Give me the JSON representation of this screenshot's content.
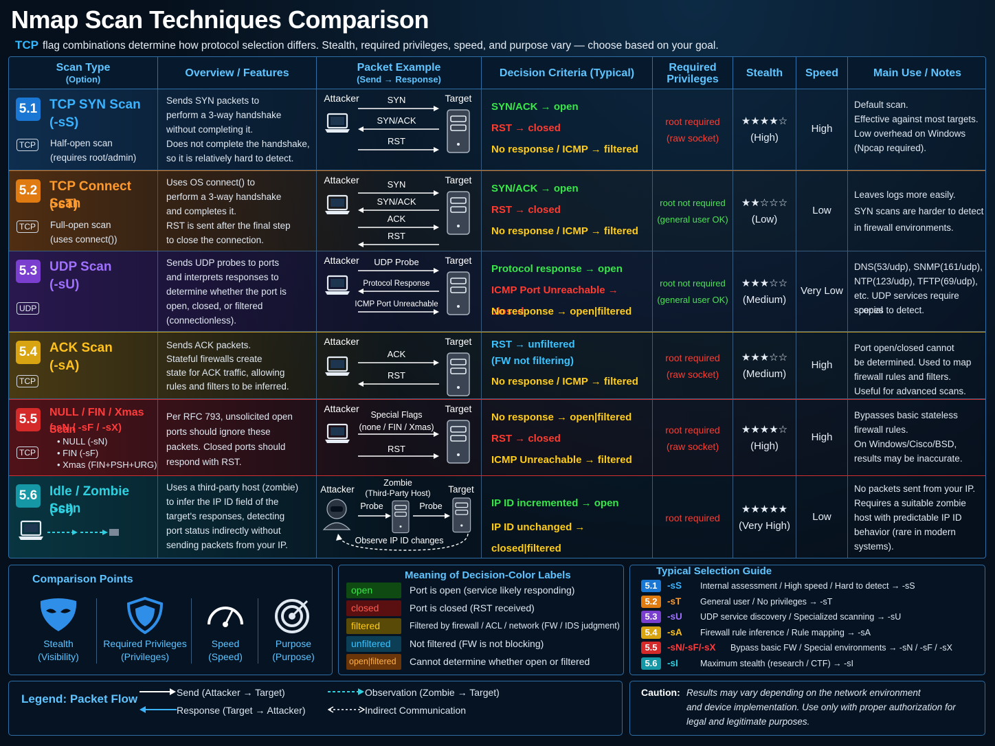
{
  "title": "Nmap Scan Techniques Comparison",
  "subtitle": {
    "tcp": "TCP",
    "text": "flag combinations determine how protocol selection differs. Stealth, required privileges, speed, and purpose vary — choose based on your goal."
  },
  "headers": {
    "scan_type": "Scan Type",
    "scan_type_sub": "(Option)",
    "overview": "Overview / Features",
    "packet": "Packet Example",
    "packet_sub": "(Send → Response)",
    "criteria": "Decision Criteria (Typical)",
    "priv": "Required",
    "priv_sub": "Privileges",
    "stealth": "Stealth",
    "speed": "Speed",
    "notes": "Main Use / Notes"
  },
  "common": {
    "attacker": "Attacker",
    "target": "Target"
  },
  "rows": [
    {
      "num": "5.1",
      "color": "#1a78d4",
      "name_color": "#3bb3ff",
      "name1": "TCP SYN Scan",
      "name2": "(-sS)",
      "proto": "TCP",
      "desc1": "Half-open scan",
      "desc2": "(requires root/admin)",
      "overview": [
        "Sends SYN packets to",
        "perform a 3-way handshake",
        "without completing it.",
        "Does not complete the handshake,",
        "so it is relatively hard to detect."
      ],
      "packets": [
        "SYN",
        "SYN/ACK",
        "RST"
      ],
      "criteria": [
        {
          "t": "SYN/ACK → open",
          "c": "c-green"
        },
        {
          "t": "RST → closed",
          "c": "c-red"
        },
        {
          "t": "No response / ICMP → filtered",
          "c": "c-yellow"
        }
      ],
      "priv1": "root required",
      "priv2": "(raw socket)",
      "priv_color": "c-red",
      "stars": "★★★★☆",
      "stealth": "(High)",
      "speed": "High",
      "notes": [
        "Default scan.",
        "Effective against most targets.",
        "Low overhead on Windows",
        "(Npcap required)."
      ]
    },
    {
      "num": "5.2",
      "color": "#e07b12",
      "name_color": "#ff9a2e",
      "name1": "TCP Connect Scan",
      "name2": "(-sT)",
      "proto": "TCP",
      "desc1": "Full-open scan",
      "desc2": "(uses connect())",
      "overview": [
        "Uses OS connect() to",
        "perform a 3-way handshake",
        "and completes it.",
        "RST is sent after the final step",
        "to close the connection."
      ],
      "packets": [
        "SYN",
        "SYN/ACK",
        "ACK",
        "RST"
      ],
      "criteria": [
        {
          "t": "SYN/ACK → open",
          "c": "c-green"
        },
        {
          "t": "RST → closed",
          "c": "c-red"
        },
        {
          "t": "No response / ICMP → filtered",
          "c": "c-yellow"
        }
      ],
      "priv1": "root not required",
      "priv2": "(general user OK)",
      "priv_color": "c-lime",
      "stars": "★★☆☆☆",
      "stealth": "(Low)",
      "speed": "Low",
      "notes": [
        "Leaves logs more easily.",
        "SYN scans are harder to detect",
        "in firewall environments."
      ]
    },
    {
      "num": "5.3",
      "color": "#7b3fd0",
      "name_color": "#a070ff",
      "name1": "UDP Scan",
      "name2": "(-sU)",
      "proto": "UDP",
      "desc1": "",
      "desc2": "",
      "overview": [
        "Sends UDP probes to ports",
        "and interprets responses to",
        "determine whether the port is",
        "open, closed, or filtered",
        "(connectionless)."
      ],
      "packets": [
        "UDP Probe",
        "Protocol Response",
        "ICMP Port Unreachable"
      ],
      "criteria": [
        {
          "t": "Protocol response → open",
          "c": "c-green"
        },
        {
          "t": "ICMP Port Unreachable → closed",
          "c": "c-red"
        },
        {
          "t": "No response → open|filtered",
          "c": "c-yellow"
        }
      ],
      "priv1": "root not required",
      "priv2": "(general user OK)",
      "priv_color": "c-lime",
      "stars": "★★★☆☆",
      "stealth": "(Medium)",
      "speed": "Very Low",
      "notes": [
        "DNS(53/udp), SNMP(161/udp),",
        "NTP(123/udp), TFTP(69/udp),",
        "etc. UDP services require special",
        "scopes to detect."
      ]
    },
    {
      "num": "5.4",
      "color": "#d9a412",
      "name_color": "#ffc21e",
      "name1": "ACK Scan",
      "name2": "(-sA)",
      "proto": "TCP",
      "desc1": "",
      "desc2": "",
      "overview": [
        "Sends ACK packets.",
        "Stateful firewalls create",
        "state for ACK traffic, allowing",
        "rules and filters to be inferred."
      ],
      "packets": [
        "ACK",
        "RST"
      ],
      "criteria": [
        {
          "t": "RST → unfiltered",
          "c": "c-blue"
        },
        {
          "t": " (FW not filtering)",
          "c": "c-blue"
        },
        {
          "t": "No response / ICMP → filtered",
          "c": "c-yellow"
        }
      ],
      "priv1": "root required",
      "priv2": "(raw socket)",
      "priv_color": "c-red",
      "stars": "★★★☆☆",
      "stealth": "(Medium)",
      "speed": "High",
      "notes": [
        "Port open/closed cannot",
        "be determined. Used to map",
        "firewall rules and filters.",
        "Useful for advanced scans."
      ]
    },
    {
      "num": "5.5",
      "color": "#d42a2a",
      "name_color": "#ff3b3b",
      "name1": "NULL / FIN / Xmas Scan",
      "name2": "(-sN / -sF / -sX)",
      "proto": "TCP",
      "desc1": "• NULL (-sN)",
      "desc2": "• FIN  (-sF)",
      "desc3": "• Xmas (FIN+PSH+URG)",
      "overview": [
        "Per RFC 793, unsolicited open",
        "ports should ignore these",
        "packets. Closed ports should",
        "respond with RST."
      ],
      "packets": [
        "Special Flags",
        "(none / FIN / Xmas)",
        "RST"
      ],
      "criteria": [
        {
          "t": "No response → open|filtered",
          "c": "c-yellow"
        },
        {
          "t": "RST → closed",
          "c": "c-red"
        },
        {
          "t": "ICMP Unreachable → filtered",
          "c": "c-yellow"
        }
      ],
      "priv1": "root required",
      "priv2": "(raw socket)",
      "priv_color": "c-red",
      "stars": "★★★★☆",
      "stealth": "(High)",
      "speed": "High",
      "notes": [
        "Bypasses basic stateless",
        "firewall rules.",
        "On Windows/Cisco/BSD,",
        "results may be inaccurate."
      ]
    },
    {
      "num": "5.6",
      "color": "#1597a6",
      "name_color": "#2fd0e0",
      "name1": "Idle / Zombie Scan",
      "name2": "(-sI)",
      "proto": "",
      "desc1": "",
      "desc2": "",
      "overview": [
        "Uses a third-party host (zombie)",
        "to infer the IP ID field of the",
        "target's responses, detecting",
        "port status indirectly without",
        "sending packets from your IP."
      ],
      "packets": [
        "Zombie",
        "(Third-Party Host)",
        "Probe",
        "Probe",
        "Observe IP ID changes"
      ],
      "criteria": [
        {
          "t": "IP ID incremented → open",
          "c": "c-green"
        },
        {
          "t": "IP ID unchanged → closed|filtered",
          "c": "c-yellow"
        }
      ],
      "priv1": "root required",
      "priv2": "",
      "priv_color": "c-red",
      "stars": "★★★★★",
      "stealth": "(Very High)",
      "speed": "Low",
      "notes": [
        "No packets sent from your IP.",
        "Requires a suitable zombie",
        "host with predictable IP ID",
        "behavior (rare in modern",
        "systems)."
      ]
    }
  ],
  "comparison": {
    "title": "Comparison Points",
    "items": [
      {
        "l1": "Stealth",
        "l2": "(Visibility)",
        "icon": "mask-icon"
      },
      {
        "l1": "Required Privileges",
        "l2": "(Privileges)",
        "icon": "shield-icon"
      },
      {
        "l1": "Speed",
        "l2": "(Speed)",
        "icon": "gauge-icon"
      },
      {
        "l1": "Purpose",
        "l2": "(Purpose)",
        "icon": "target-icon"
      }
    ]
  },
  "labels": {
    "title": "Meaning of Decision-Color Labels",
    "items": [
      {
        "chip": "open",
        "text": "Port is open (service likely responding)",
        "bg": "#0f4a12",
        "fg": "#39e64a"
      },
      {
        "chip": "closed",
        "text": "Port is closed (RST received)",
        "bg": "#5a1010",
        "fg": "#ff5a50"
      },
      {
        "chip": "filtered",
        "text": "Filtered by firewall / ACL / network (FW / IDS judgment)",
        "bg": "#5a4a08",
        "fg": "#ffcc1a"
      },
      {
        "chip": "unfiltered",
        "text": "Not filtered (FW is not blocking)",
        "bg": "#0c3f55",
        "fg": "#3bc3ff"
      },
      {
        "chip": "open|filtered",
        "text": "Cannot determine whether open or filtered",
        "bg": "#6a3508",
        "fg": "#ffb04a"
      }
    ]
  },
  "guide": {
    "title": "Typical Selection Guide",
    "items": [
      {
        "num": "5.1",
        "opt": "-sS",
        "text": "Internal assessment / High speed / Hard to detect  →  -sS",
        "color": "#1a78d4",
        "oc": "#3bb3ff"
      },
      {
        "num": "5.2",
        "opt": "-sT",
        "text": "General user / No privileges  →  -sT",
        "color": "#e07b12",
        "oc": "#ff9a2e"
      },
      {
        "num": "5.3",
        "opt": "-sU",
        "text": "UDP service discovery / Specialized scanning  →  -sU",
        "color": "#7b3fd0",
        "oc": "#a070ff"
      },
      {
        "num": "5.4",
        "opt": "-sA",
        "text": "Firewall rule inference / Rule mapping  →  -sA",
        "color": "#d9a412",
        "oc": "#ffc21e"
      },
      {
        "num": "5.5",
        "opt": "-sN/-sF/-sX",
        "text": "Bypass basic FW / Special environments  →  -sN / -sF / -sX",
        "color": "#d42a2a",
        "oc": "#ff3b3b"
      },
      {
        "num": "5.6",
        "opt": "-sI",
        "text": "Maximum stealth (research / CTF)  →  -sI",
        "color": "#1597a6",
        "oc": "#2fd0e0"
      }
    ]
  },
  "legend": {
    "title": "Legend: Packet Flow",
    "send": "Send (Attacker → Target)",
    "response": "Response (Target → Attacker)",
    "observation": "Observation (Zombie → Target)",
    "indirect": "Indirect Communication"
  },
  "caution": {
    "label": "Caution:",
    "l1": "Results may vary depending on the network environment",
    "l2": "and device implementation. Use only with proper authorization for",
    "l3": "legal and legitimate purposes."
  }
}
